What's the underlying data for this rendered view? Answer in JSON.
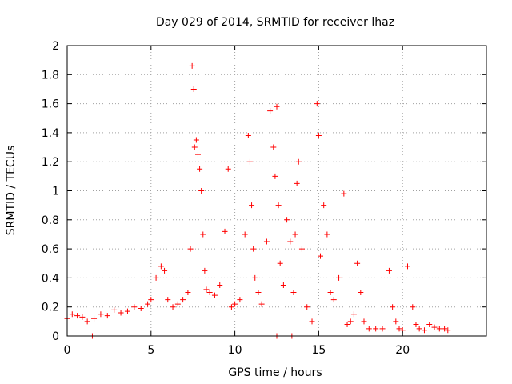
{
  "chart_data": {
    "type": "scatter",
    "title": "Day 029 of 2014, SRMTID for receiver lhaz",
    "xlabel": "GPS time / hours",
    "ylabel": "SRMTID / TECUs",
    "xlim": [
      0,
      25
    ],
    "ylim": [
      0,
      2
    ],
    "xticks": [
      0,
      5,
      10,
      15,
      20
    ],
    "xtick_labels": [
      "0",
      "5",
      "10",
      "15",
      "20"
    ],
    "yticks": [
      0,
      0.2,
      0.4,
      0.6,
      0.8,
      1,
      1.2,
      1.4,
      1.6,
      1.8,
      2
    ],
    "ytick_labels": [
      "0",
      "0.2",
      "0.4",
      "0.6",
      "0.8",
      "1",
      "1.2",
      "1.4",
      "1.6",
      "1.8",
      "2"
    ],
    "grid": true,
    "marker": "+",
    "color": "#ff0000",
    "series": [
      {
        "name": "SRMTID",
        "x": [
          0.0,
          0.3,
          0.6,
          0.9,
          1.2,
          1.6,
          2.0,
          2.4,
          2.8,
          3.2,
          3.6,
          4.0,
          4.4,
          4.8,
          5.0,
          5.3,
          5.6,
          5.8,
          6.0,
          6.3,
          6.6,
          6.9,
          7.2,
          7.35,
          7.45,
          7.55,
          7.6,
          7.7,
          7.8,
          7.9,
          8.0,
          8.1,
          8.2,
          8.3,
          8.5,
          8.8,
          9.1,
          9.4,
          9.6,
          9.8,
          10.0,
          10.3,
          10.6,
          10.8,
          10.9,
          11.0,
          11.1,
          11.2,
          11.4,
          11.6,
          11.9,
          12.1,
          12.3,
          12.4,
          12.5,
          12.6,
          12.7,
          12.9,
          13.1,
          13.3,
          13.5,
          13.6,
          13.7,
          13.8,
          14.0,
          14.3,
          14.6,
          14.9,
          15.0,
          15.1,
          15.3,
          15.5,
          15.7,
          15.9,
          16.2,
          16.5,
          16.7,
          16.9,
          17.1,
          17.3,
          17.5,
          17.7,
          18.0,
          18.4,
          18.8,
          19.2,
          19.4,
          19.6,
          19.8,
          20.0,
          20.3,
          20.6,
          20.8,
          21.0,
          21.3,
          21.6,
          21.9,
          22.2,
          22.5,
          22.7,
          1.5,
          12.5,
          13.4
        ],
        "y": [
          0.12,
          0.15,
          0.14,
          0.13,
          0.1,
          0.12,
          0.15,
          0.14,
          0.18,
          0.16,
          0.17,
          0.2,
          0.19,
          0.22,
          0.25,
          0.4,
          0.48,
          0.45,
          0.25,
          0.2,
          0.22,
          0.25,
          0.3,
          0.6,
          1.86,
          1.7,
          1.3,
          1.35,
          1.25,
          1.15,
          1.0,
          0.7,
          0.45,
          0.32,
          0.3,
          0.28,
          0.35,
          0.72,
          1.15,
          0.2,
          0.22,
          0.25,
          0.7,
          1.38,
          1.2,
          0.9,
          0.6,
          0.4,
          0.3,
          0.22,
          0.65,
          1.55,
          1.3,
          1.1,
          1.58,
          0.9,
          0.5,
          0.35,
          0.8,
          0.65,
          0.3,
          0.7,
          1.05,
          1.2,
          0.6,
          0.2,
          0.1,
          1.6,
          1.38,
          0.55,
          0.9,
          0.7,
          0.3,
          0.25,
          0.4,
          0.98,
          0.08,
          0.1,
          0.15,
          0.5,
          0.3,
          0.1,
          0.05,
          0.05,
          0.05,
          0.45,
          0.2,
          0.1,
          0.05,
          0.04,
          0.48,
          0.2,
          0.08,
          0.05,
          0.04,
          0.08,
          0.06,
          0.05,
          0.05,
          0.04,
          0.0,
          0.0,
          0.0
        ]
      }
    ]
  }
}
